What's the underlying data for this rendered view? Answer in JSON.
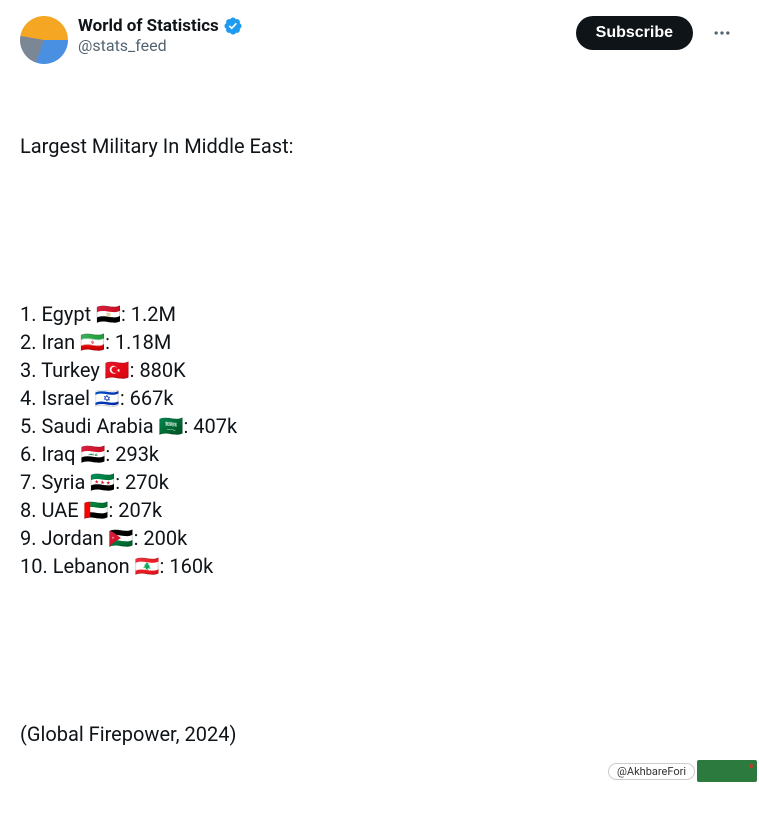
{
  "user": {
    "display_name": "World of Statistics",
    "handle": "@stats_feed",
    "verified_color": "#1d9bf0"
  },
  "actions": {
    "subscribe_label": "Subscribe"
  },
  "tweet": {
    "title": "Largest Military In Middle East:",
    "items": [
      {
        "rank": "1",
        "country": "Egypt",
        "flag": "🇪🇬",
        "value": "1.2M"
      },
      {
        "rank": "2",
        "country": "Iran",
        "flag": "🇮🇷",
        "value": "1.18M"
      },
      {
        "rank": "3",
        "country": "Turkey",
        "flag": "🇹🇷",
        "value": "880K"
      },
      {
        "rank": "4",
        "country": "Israel",
        "flag": "🇮🇱",
        "value": "667k"
      },
      {
        "rank": "5",
        "country": "Saudi Arabia",
        "flag": "🇸🇦",
        "value": "407k"
      },
      {
        "rank": "6",
        "country": "Iraq",
        "flag": "🇮🇶",
        "value": "293k"
      },
      {
        "rank": "7",
        "country": "Syria",
        "flag": "🇸🇾",
        "value": "270k"
      },
      {
        "rank": "8",
        "country": "UAE",
        "flag": "🇦🇪",
        "value": "207k"
      },
      {
        "rank": "9",
        "country": "Jordan",
        "flag": "🇯🇴",
        "value": "200k"
      },
      {
        "rank": "10",
        "country": "Lebanon",
        "flag": "🇱🇧",
        "value": "160k"
      }
    ],
    "source": "(Global Firepower, 2024)"
  },
  "watermark": {
    "handle": "@AkhbareFori"
  },
  "colors": {
    "text_primary": "#0f1419",
    "text_secondary": "#536471",
    "verified": "#1d9bf0",
    "subscribe_bg": "#0f1419",
    "subscribe_text": "#ffffff",
    "background": "#ffffff"
  }
}
